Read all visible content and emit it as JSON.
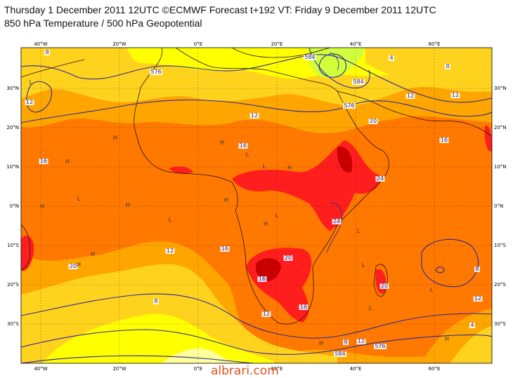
{
  "header": {
    "line1": "Thursday 1 December 2011 12UTC ©ECMWF Forecast t+192 VT: Friday 9 December 2011 12UTC",
    "line2": "850 hPa Temperature / 500 hPa Geopotential"
  },
  "axes": {
    "lon_labels": [
      "40°W",
      "20°W",
      "0°E",
      "20°E",
      "40°E",
      "60°E"
    ],
    "lat_labels": [
      "30°N",
      "20°N",
      "10°N",
      "0°N",
      "10°S",
      "20°S",
      "30°S"
    ]
  },
  "temperature_labels": [
    "8",
    "12",
    "16",
    "20",
    "12",
    "16",
    "16",
    "12",
    "16",
    "8",
    "12",
    "16",
    "20",
    "24",
    "24",
    "20",
    "20",
    "12",
    "12",
    "8",
    "4",
    "8",
    "12",
    "16"
  ],
  "geopotential_labels": [
    "576",
    "584",
    "576",
    "584",
    "576",
    "584",
    "4",
    "8",
    "12"
  ],
  "pressure_centres": [
    "L",
    "H",
    "H",
    "H",
    "L",
    "H",
    "L",
    "H",
    "L",
    "H",
    "L",
    "H",
    "L",
    "H",
    "L",
    "H",
    "H",
    "L",
    "H",
    "L",
    "H",
    "L"
  ],
  "colors": {
    "pale_yellow": "#ffff9a",
    "yellow": "#ffff00",
    "light_orange": "#ffd21e",
    "orange_gold": "#ffa500",
    "dark_orange": "#ff7800",
    "red": "#ff1e1e",
    "dark_red": "#c80000",
    "green_yellow": "#d2ff3c",
    "contour_blue": "#2a2a9a"
  },
  "watermark": "albrari.com"
}
